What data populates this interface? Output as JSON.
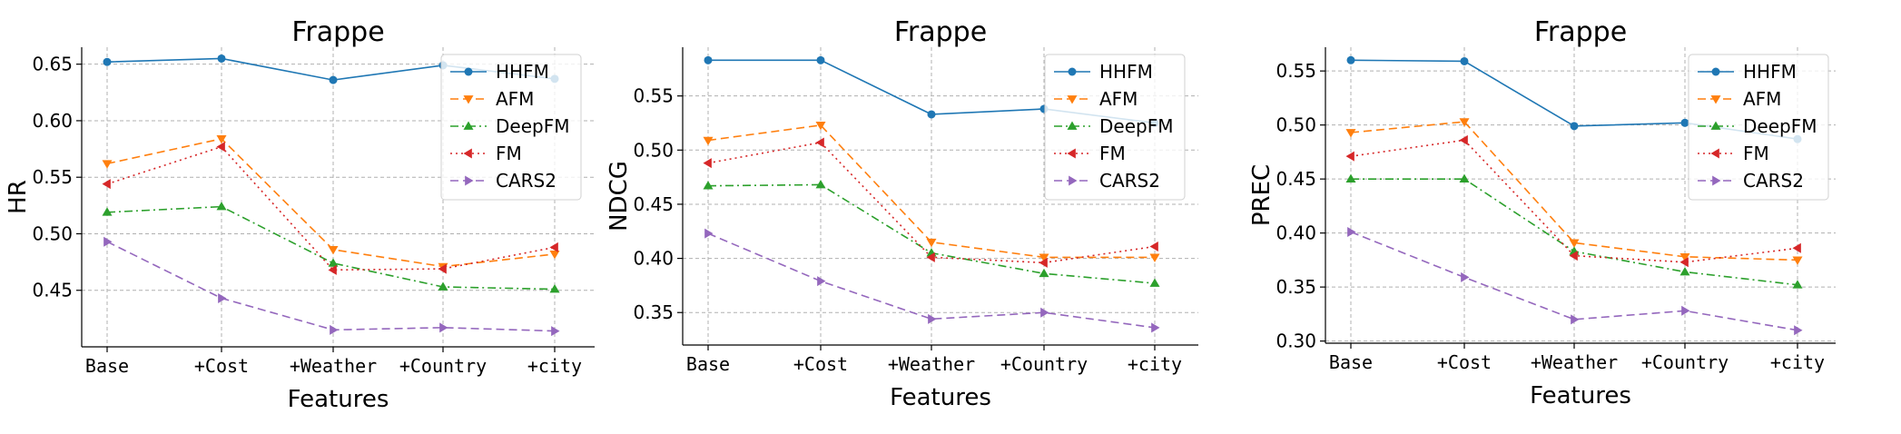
{
  "chart_data": [
    {
      "type": "line",
      "title": "Frappe",
      "xlabel": "Features",
      "ylabel": "HR",
      "categories": [
        "Base",
        "+Cost",
        "+Weather",
        "+Country",
        "+city"
      ],
      "ylim": [
        0.4,
        0.665
      ],
      "yticks": [
        "0.45",
        "0.50",
        "0.55",
        "0.60",
        "0.65"
      ],
      "grid": true,
      "legend": "top-right",
      "series": [
        {
          "name": "HHFM",
          "color": "#1f77b4",
          "style": "solid",
          "marker": "circle",
          "values": [
            0.652,
            0.655,
            0.636,
            0.649,
            0.637
          ]
        },
        {
          "name": "AFM",
          "color": "#ff7f0e",
          "style": "dashed",
          "marker": "triangle-down",
          "values": [
            0.562,
            0.584,
            0.486,
            0.471,
            0.482
          ]
        },
        {
          "name": "DeepFM",
          "color": "#2ca02c",
          "style": "dashdot",
          "marker": "triangle-up",
          "values": [
            0.519,
            0.524,
            0.474,
            0.453,
            0.451
          ]
        },
        {
          "name": "FM",
          "color": "#d62728",
          "style": "dotted",
          "marker": "triangle-left",
          "values": [
            0.544,
            0.577,
            0.468,
            0.469,
            0.488
          ]
        },
        {
          "name": "CARS2",
          "color": "#9467bd",
          "style": "dashed",
          "marker": "triangle-right",
          "values": [
            0.493,
            0.443,
            0.415,
            0.417,
            0.414
          ]
        }
      ]
    },
    {
      "type": "line",
      "title": "Frappe",
      "xlabel": "Features",
      "ylabel": "NDCG",
      "categories": [
        "Base",
        "+Cost",
        "+Weather",
        "+Country",
        "+city"
      ],
      "ylim": [
        0.32,
        0.595
      ],
      "yticks": [
        "0.35",
        "0.40",
        "0.45",
        "0.50",
        "0.55"
      ],
      "grid": true,
      "legend": "top-right",
      "series": [
        {
          "name": "HHFM",
          "color": "#1f77b4",
          "style": "solid",
          "marker": "circle",
          "values": [
            0.583,
            0.583,
            0.533,
            0.538,
            0.525
          ]
        },
        {
          "name": "AFM",
          "color": "#ff7f0e",
          "style": "dashed",
          "marker": "triangle-down",
          "values": [
            0.509,
            0.523,
            0.415,
            0.401,
            0.401
          ]
        },
        {
          "name": "DeepFM",
          "color": "#2ca02c",
          "style": "dashdot",
          "marker": "triangle-up",
          "values": [
            0.467,
            0.468,
            0.405,
            0.386,
            0.377
          ]
        },
        {
          "name": "FM",
          "color": "#d62728",
          "style": "dotted",
          "marker": "triangle-left",
          "values": [
            0.488,
            0.507,
            0.401,
            0.396,
            0.411
          ]
        },
        {
          "name": "CARS2",
          "color": "#9467bd",
          "style": "dashed",
          "marker": "triangle-right",
          "values": [
            0.423,
            0.379,
            0.344,
            0.35,
            0.336
          ]
        }
      ]
    },
    {
      "type": "line",
      "title": "Frappe",
      "xlabel": "Features",
      "ylabel": "PREC",
      "categories": [
        "Base",
        "+Cost",
        "+Weather",
        "+Country",
        "+city"
      ],
      "ylim": [
        0.298,
        0.572
      ],
      "yticks": [
        "0.30",
        "0.35",
        "0.40",
        "0.45",
        "0.50",
        "0.55"
      ],
      "grid": true,
      "legend": "top-right",
      "series": [
        {
          "name": "HHFM",
          "color": "#1f77b4",
          "style": "solid",
          "marker": "circle",
          "values": [
            0.56,
            0.559,
            0.499,
            0.502,
            0.487
          ]
        },
        {
          "name": "AFM",
          "color": "#ff7f0e",
          "style": "dashed",
          "marker": "triangle-down",
          "values": [
            0.493,
            0.503,
            0.391,
            0.378,
            0.375
          ]
        },
        {
          "name": "DeepFM",
          "color": "#2ca02c",
          "style": "dashdot",
          "marker": "triangle-up",
          "values": [
            0.45,
            0.45,
            0.383,
            0.364,
            0.352
          ]
        },
        {
          "name": "FM",
          "color": "#d62728",
          "style": "dotted",
          "marker": "triangle-left",
          "values": [
            0.471,
            0.486,
            0.379,
            0.373,
            0.386
          ]
        },
        {
          "name": "CARS2",
          "color": "#9467bd",
          "style": "dashed",
          "marker": "triangle-right",
          "values": [
            0.401,
            0.359,
            0.32,
            0.328,
            0.31
          ]
        }
      ]
    }
  ]
}
